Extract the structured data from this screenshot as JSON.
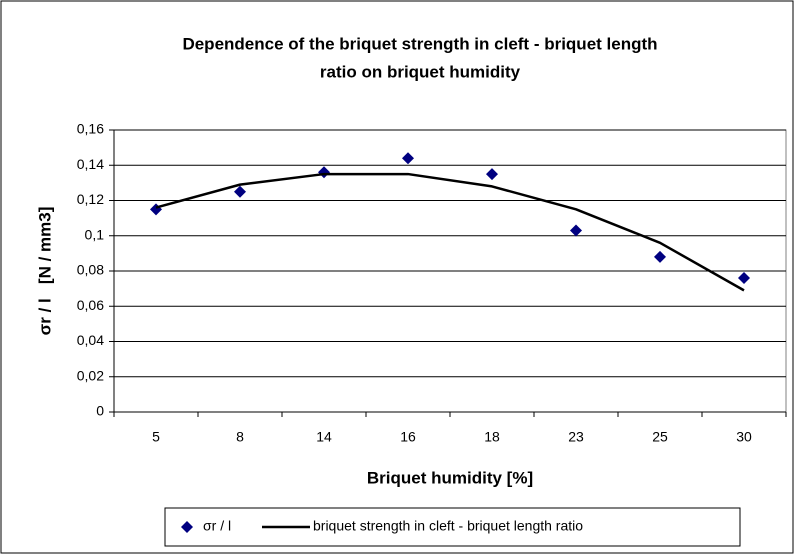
{
  "chart_data": {
    "type": "scatter",
    "title": [
      "Dependence of the briquet strength in cleft - briquet length",
      "ratio on briquet humidity"
    ],
    "x_label": "Briquet humidity [%]",
    "y_label": "σr / l   [N / mm3]",
    "categories": [
      "5",
      "8",
      "14",
      "16",
      "18",
      "23",
      "25",
      "30"
    ],
    "series": [
      {
        "name": "σr / l",
        "type": "scatter",
        "color": "#000080",
        "values": [
          0.115,
          0.125,
          0.136,
          0.144,
          0.135,
          0.103,
          0.088,
          0.076
        ]
      },
      {
        "name": "briquet strength in cleft - briquet length ratio",
        "type": "line",
        "color": "#000000",
        "values": [
          0.116,
          0.129,
          0.135,
          0.135,
          0.128,
          0.115,
          0.096,
          0.069
        ]
      }
    ],
    "ylim": [
      0,
      0.16
    ],
    "yticks": [
      0,
      {
        "value": 0.02,
        "label": "0,02"
      },
      {
        "value": 0.04,
        "label": "0,04"
      },
      {
        "value": 0.06,
        "label": "0,06"
      },
      {
        "value": 0.08,
        "label": "0,08"
      },
      {
        "value": 0.1,
        "label": "0,1"
      },
      {
        "value": 0.12,
        "label": "0,12"
      },
      {
        "value": 0.14,
        "label": "0,14"
      },
      {
        "value": 0.16,
        "label": "0,16"
      }
    ],
    "grid": true,
    "legend": "bottom"
  }
}
